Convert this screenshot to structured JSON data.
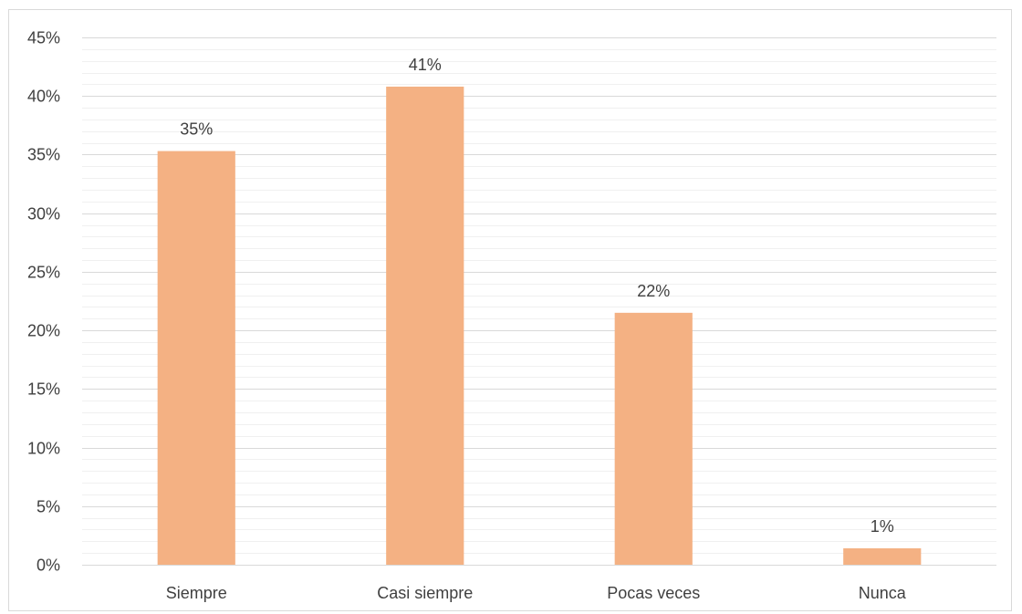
{
  "chart_data": {
    "type": "bar",
    "categories": [
      "Siempre",
      "Casi siempre",
      "Pocas veces",
      "Nunca"
    ],
    "values": [
      35.3,
      40.8,
      21.5,
      1.4
    ],
    "data_labels": [
      "35%",
      "41%",
      "22%",
      "1%"
    ],
    "title": "",
    "xlabel": "",
    "ylabel": "",
    "ylim": [
      0,
      45
    ],
    "y_major_step": 5,
    "y_minor_step": 1,
    "y_tick_labels": [
      "0%",
      "5%",
      "10%",
      "15%",
      "20%",
      "25%",
      "30%",
      "35%",
      "40%",
      "45%"
    ],
    "grid": true,
    "legend": "none",
    "bar_color": "#F4B183",
    "major_grid_color": "#D9D9D9",
    "minor_grid_color": "#F0F0F0"
  }
}
